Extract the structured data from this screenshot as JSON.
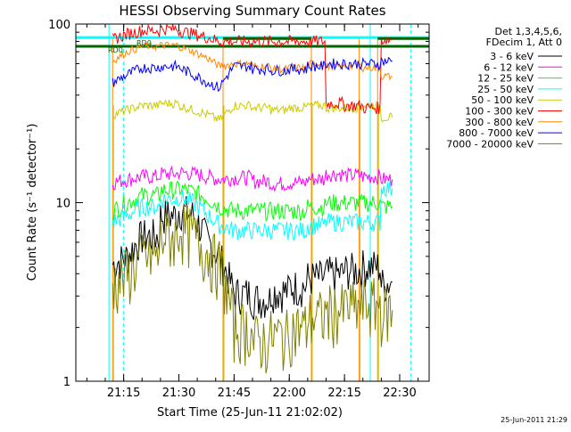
{
  "chart_data": {
    "type": "line",
    "title": "HESSI Observing Summary Count Rates",
    "xlabel": "Start Time (25-Jun-11 21:02:02)",
    "ylabel": "Count Rate (s⁻¹ detector⁻¹)",
    "y_scale": "log",
    "ylim": [
      1,
      100
    ],
    "y_ticks": [
      "1",
      "10",
      "100"
    ],
    "xlim": [
      "21:02",
      "22:38"
    ],
    "x_ticks": [
      "21:15",
      "21:30",
      "21:45",
      "22:00",
      "22:15",
      "22:30"
    ],
    "grid": false,
    "legend_placement": "right",
    "legend_header": [
      "Det 1,3,4,5,6,",
      "FDecim 1, Att 0"
    ],
    "annotations": [
      "RD0",
      "RD0"
    ],
    "timestamp": "25-Jun-2011 21:29",
    "series": [
      {
        "name": "3 - 6 keV",
        "color": "#000000",
        "values": [
          [
            "21:12",
            4.5
          ],
          [
            "21:16",
            5
          ],
          [
            "21:20",
            6.5
          ],
          [
            "21:25",
            8.5
          ],
          [
            "21:30",
            9.2
          ],
          [
            "21:34",
            8.5
          ],
          [
            "21:38",
            6
          ],
          [
            "21:41",
            5
          ],
          [
            "21:45",
            3.1
          ],
          [
            "21:50",
            2.9
          ],
          [
            "21:55",
            3.2
          ],
          [
            "22:00",
            3.4
          ],
          [
            "22:05",
            3.8
          ],
          [
            "22:10",
            4.0
          ],
          [
            "22:15",
            4.2
          ],
          [
            "22:20",
            4.4
          ],
          [
            "22:25",
            3.5
          ],
          [
            "22:28",
            3.6
          ]
        ]
      },
      {
        "name": "6 - 12 keV",
        "color": "#ff00ff",
        "values": [
          [
            "21:12",
            13
          ],
          [
            "21:16",
            13.5
          ],
          [
            "21:20",
            14
          ],
          [
            "21:25",
            14.5
          ],
          [
            "21:30",
            14.8
          ],
          [
            "21:34",
            14.5
          ],
          [
            "21:38",
            14
          ],
          [
            "21:41",
            13.5
          ],
          [
            "21:45",
            13.8
          ],
          [
            "21:50",
            13.2
          ],
          [
            "21:55",
            12.8
          ],
          [
            "22:00",
            13
          ],
          [
            "22:05",
            13.6
          ],
          [
            "22:10",
            14.5
          ],
          [
            "22:15",
            14.2
          ],
          [
            "22:20",
            14
          ],
          [
            "22:25",
            13.5
          ],
          [
            "22:28",
            13.5
          ]
        ]
      },
      {
        "name": "12 - 25 keV",
        "color": "#00ff00",
        "values": [
          [
            "21:12",
            9
          ],
          [
            "21:16",
            10
          ],
          [
            "21:20",
            11
          ],
          [
            "21:25",
            11.8
          ],
          [
            "21:30",
            12
          ],
          [
            "21:34",
            11.5
          ],
          [
            "21:38",
            10.5
          ],
          [
            "21:41",
            9.5
          ],
          [
            "21:45",
            9
          ],
          [
            "21:50",
            9
          ],
          [
            "21:55",
            9
          ],
          [
            "22:00",
            9
          ],
          [
            "22:05",
            9.5
          ],
          [
            "22:10",
            10
          ],
          [
            "22:15",
            10
          ],
          [
            "22:20",
            10
          ],
          [
            "22:25",
            9.5
          ],
          [
            "22:28",
            9.5
          ]
        ]
      },
      {
        "name": "25 - 50 keV",
        "color": "#00ffff",
        "values": [
          [
            "21:12",
            7.8
          ],
          [
            "21:16",
            8.5
          ],
          [
            "21:20",
            9.5
          ],
          [
            "21:25",
            10.5
          ],
          [
            "21:30",
            10.8
          ],
          [
            "21:34",
            10
          ],
          [
            "21:38",
            8.5
          ],
          [
            "21:41",
            7.5
          ],
          [
            "21:45",
            7
          ],
          [
            "21:50",
            7
          ],
          [
            "21:55",
            7
          ],
          [
            "22:00",
            7
          ],
          [
            "22:05",
            7.5
          ],
          [
            "22:10",
            7.8
          ],
          [
            "22:15",
            7.8
          ],
          [
            "22:20",
            7.8
          ],
          [
            "22:25",
            12.2
          ],
          [
            "22:28",
            12
          ]
        ]
      },
      {
        "name": "50 - 100 keV",
        "color": "#cccc00",
        "values": [
          [
            "21:12",
            31
          ],
          [
            "21:16",
            33
          ],
          [
            "21:20",
            35
          ],
          [
            "21:25",
            36
          ],
          [
            "21:30",
            35
          ],
          [
            "21:34",
            33
          ],
          [
            "21:38",
            31
          ],
          [
            "21:41",
            29
          ],
          [
            "21:45",
            35
          ],
          [
            "21:50",
            34
          ],
          [
            "21:55",
            33
          ],
          [
            "22:00",
            34
          ],
          [
            "22:05",
            35
          ],
          [
            "22:10",
            34
          ],
          [
            "22:15",
            34
          ],
          [
            "22:20",
            35
          ],
          [
            "22:25",
            30
          ],
          [
            "22:28",
            30
          ]
        ]
      },
      {
        "name": "100 - 300 keV",
        "color": "#ff0000",
        "values": [
          [
            "21:12",
            82
          ],
          [
            "21:16",
            88
          ],
          [
            "21:20",
            92
          ],
          [
            "21:25",
            94
          ],
          [
            "21:30",
            92
          ],
          [
            "21:34",
            88
          ],
          [
            "21:38",
            84
          ],
          [
            "21:41",
            80
          ],
          [
            "21:45",
            80
          ],
          [
            "21:50",
            80
          ],
          [
            "21:55",
            80
          ],
          [
            "22:00",
            80
          ],
          [
            "22:05",
            80
          ],
          [
            "22:10",
            36
          ],
          [
            "22:15",
            35
          ],
          [
            "22:20",
            34
          ],
          [
            "22:25",
            82
          ],
          [
            "22:28",
            82
          ]
        ]
      },
      {
        "name": "300 - 800 keV",
        "color": "#ff8800",
        "values": [
          [
            "21:12",
            62
          ],
          [
            "21:16",
            70
          ],
          [
            "21:20",
            75
          ],
          [
            "21:25",
            76
          ],
          [
            "21:30",
            75
          ],
          [
            "21:34",
            70
          ],
          [
            "21:38",
            64
          ],
          [
            "21:41",
            58
          ],
          [
            "21:45",
            60
          ],
          [
            "21:50",
            58
          ],
          [
            "21:55",
            56
          ],
          [
            "22:00",
            57
          ],
          [
            "22:05",
            60
          ],
          [
            "22:10",
            58
          ],
          [
            "22:15",
            58
          ],
          [
            "22:20",
            57
          ],
          [
            "22:25",
            51
          ],
          [
            "22:28",
            51
          ]
        ]
      },
      {
        "name": "800 - 7000 keV",
        "color": "#0000ff",
        "values": [
          [
            "21:12",
            47
          ],
          [
            "21:16",
            52
          ],
          [
            "21:20",
            57
          ],
          [
            "21:25",
            58
          ],
          [
            "21:30",
            57
          ],
          [
            "21:34",
            52
          ],
          [
            "21:38",
            47
          ],
          [
            "21:41",
            44
          ],
          [
            "21:45",
            58
          ],
          [
            "21:50",
            56
          ],
          [
            "21:55",
            55
          ],
          [
            "22:00",
            56
          ],
          [
            "22:05",
            58
          ],
          [
            "22:10",
            60
          ],
          [
            "22:15",
            60
          ],
          [
            "22:20",
            60
          ],
          [
            "22:25",
            62
          ],
          [
            "22:28",
            62
          ]
        ]
      },
      {
        "name": "7000 - 20000 keV",
        "color": "#808000",
        "values": [
          [
            "21:12",
            3.5
          ],
          [
            "21:16",
            4
          ],
          [
            "21:20",
            5
          ],
          [
            "21:25",
            6.5
          ],
          [
            "21:30",
            7.5
          ],
          [
            "21:34",
            6.5
          ],
          [
            "21:38",
            5.2
          ],
          [
            "21:41",
            4.5
          ],
          [
            "21:45",
            2
          ],
          [
            "21:50",
            1.7
          ],
          [
            "21:55",
            1.8
          ],
          [
            "22:00",
            2
          ],
          [
            "22:05",
            2.3
          ],
          [
            "22:10",
            2.5
          ],
          [
            "22:15",
            2.6
          ],
          [
            "22:20",
            2.7
          ],
          [
            "22:25",
            2.5
          ],
          [
            "22:28",
            2.5
          ]
        ]
      }
    ],
    "reference_lines": {
      "dark_green_levels": [
        75,
        83
      ],
      "cyan_level": 84,
      "orange_level": 85,
      "cyan_vlines": [
        "21:11",
        "22:22"
      ],
      "cyan_dashed_vlines": [
        "21:15",
        "22:33"
      ],
      "orange_vlines": [
        "21:12",
        "21:42",
        "22:06",
        "22:19",
        "22:24"
      ],
      "yellow_vlines": [
        "21:12",
        "21:42",
        "22:06",
        "22:19",
        "22:24"
      ]
    }
  }
}
